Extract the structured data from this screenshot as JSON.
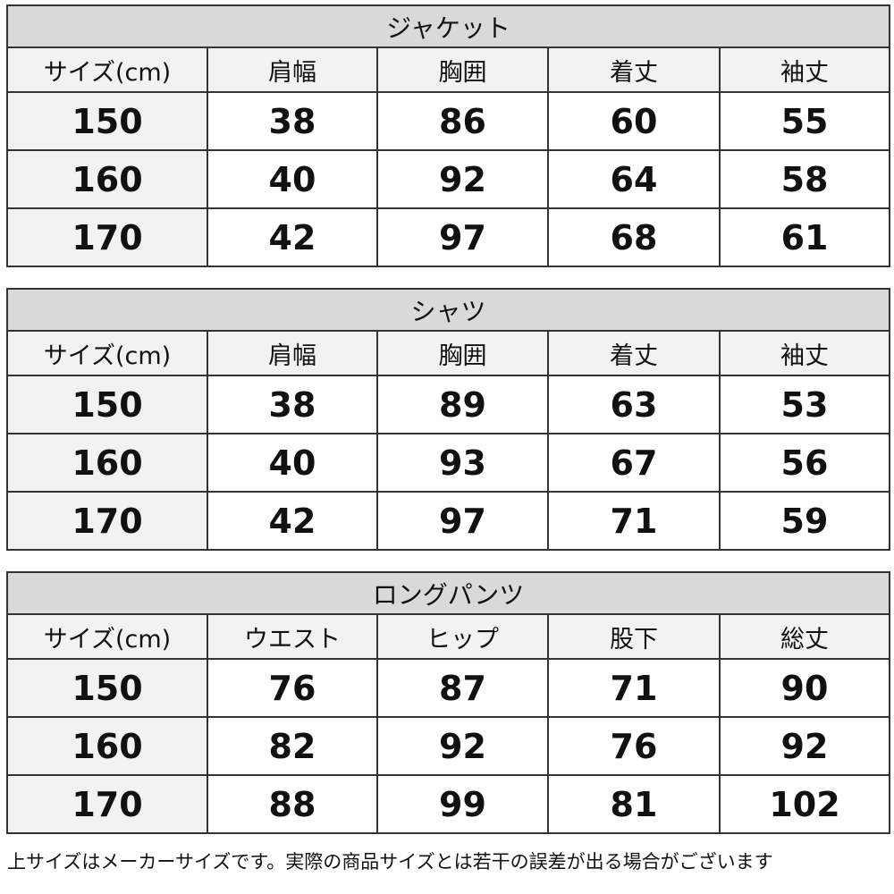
{
  "tables": [
    {
      "title": "ジャケット",
      "headers": [
        "サイズ(cm)",
        "肩幅",
        "胸囲",
        "着丈",
        "袖丈"
      ],
      "rows": [
        [
          "150",
          "38",
          "86",
          "60",
          "55"
        ],
        [
          "160",
          "40",
          "92",
          "64",
          "58"
        ],
        [
          "170",
          "42",
          "97",
          "68",
          "61"
        ]
      ]
    },
    {
      "title": "シャツ",
      "headers": [
        "サイズ(cm)",
        "肩幅",
        "胸囲",
        "着丈",
        "袖丈"
      ],
      "rows": [
        [
          "150",
          "38",
          "89",
          "63",
          "53"
        ],
        [
          "160",
          "40",
          "93",
          "67",
          "56"
        ],
        [
          "170",
          "42",
          "97",
          "71",
          "59"
        ]
      ]
    },
    {
      "title": "ロングパンツ",
      "headers": [
        "サイズ(cm)",
        "ウエスト",
        "ヒップ",
        "股下",
        "総丈"
      ],
      "rows": [
        [
          "150",
          "76",
          "87",
          "71",
          "90"
        ],
        [
          "160",
          "82",
          "92",
          "76",
          "92"
        ],
        [
          "170",
          "88",
          "99",
          "81",
          "102"
        ]
      ]
    }
  ],
  "footnote": "上サイズはメーカーサイズです。実際の商品サイズとは若干の誤差が出る場合がございます",
  "colors": {
    "title_bg": "#d9d9d9",
    "header_bg": "#f2f2f2",
    "border": "#333333"
  }
}
